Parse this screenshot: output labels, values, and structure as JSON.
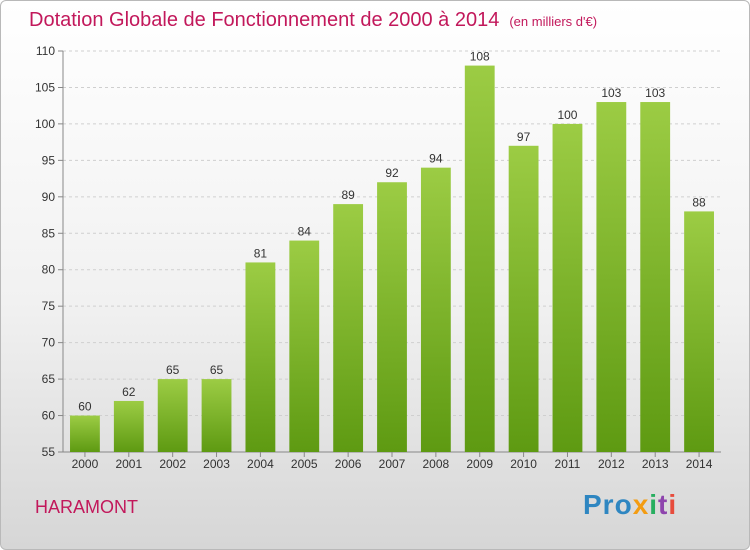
{
  "chart_data": {
    "type": "bar",
    "title": "Dotation Globale de Fonctionnement de 2000 à 2014",
    "subtitle": "(en milliers d'€)",
    "categories": [
      "2000",
      "2001",
      "2002",
      "2003",
      "2004",
      "2005",
      "2006",
      "2007",
      "2008",
      "2009",
      "2010",
      "2011",
      "2012",
      "2013",
      "2014"
    ],
    "values": [
      60,
      62,
      65,
      65,
      81,
      84,
      89,
      92,
      94,
      108,
      97,
      100,
      103,
      103,
      88
    ],
    "ylim": [
      55,
      110
    ],
    "yticks": [
      55,
      60,
      65,
      70,
      75,
      80,
      85,
      90,
      95,
      100,
      105,
      110
    ],
    "xlabel": "",
    "ylabel": "",
    "grid": true,
    "bar_color_top": "#9ccc44",
    "bar_color_bottom": "#5e9a12",
    "title_color": "#c2185b"
  },
  "footer": {
    "city": "HARAMONT",
    "logo": [
      "Pro",
      "x",
      "i",
      "t",
      "i"
    ]
  }
}
